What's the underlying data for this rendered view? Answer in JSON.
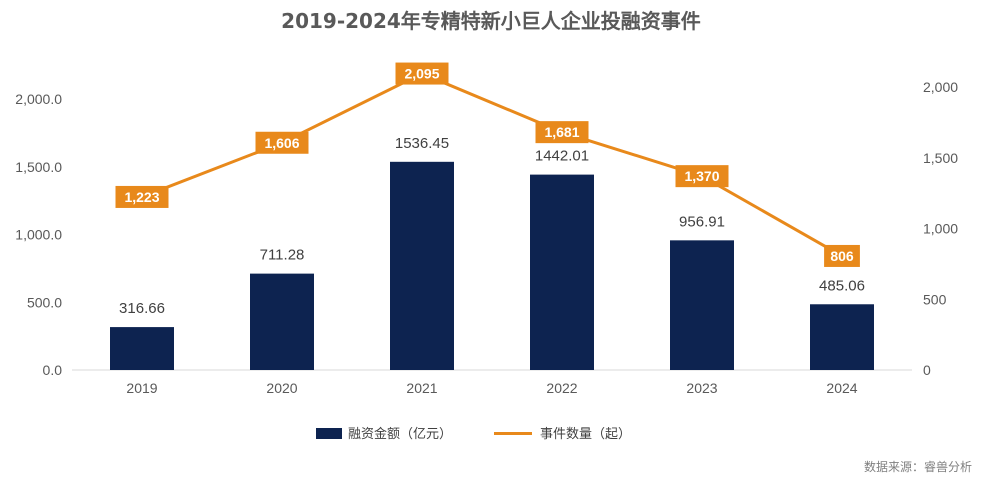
{
  "chart_data": {
    "type": "bar+line",
    "title": "2019-2024年专精特新小巨人企业投融资事件",
    "categories": [
      "2019",
      "2020",
      "2021",
      "2022",
      "2023",
      "2024"
    ],
    "series": [
      {
        "name": "融资金额（亿元）",
        "type": "bar",
        "axis": "left",
        "color": "#0d2350",
        "values": [
          316.66,
          711.28,
          1536.45,
          1442.01,
          956.91,
          485.06
        ],
        "labels": [
          "316.66",
          "711.28",
          "1536.45",
          "1442.01",
          "956.91",
          "485.06"
        ]
      },
      {
        "name": "事件数量（起）",
        "type": "line",
        "axis": "right",
        "color": "#e8891b",
        "values": [
          1223,
          1606,
          2095,
          1681,
          1370,
          806
        ],
        "labels": [
          "1,223",
          "1,606",
          "2,095",
          "1,681",
          "1,370",
          "806"
        ]
      }
    ],
    "y_left": {
      "min": 0,
      "max": 2000,
      "ticks": [
        "0.0",
        "500.0",
        "1,000.0",
        "1,500.0",
        "2,000.0"
      ]
    },
    "y_right": {
      "min": 0,
      "max": 2000,
      "ticks": [
        "0",
        "500",
        "1,000",
        "1,500",
        "2,000"
      ]
    },
    "legend_position": "bottom",
    "grid": false
  },
  "source": "数据来源：睿兽分析"
}
